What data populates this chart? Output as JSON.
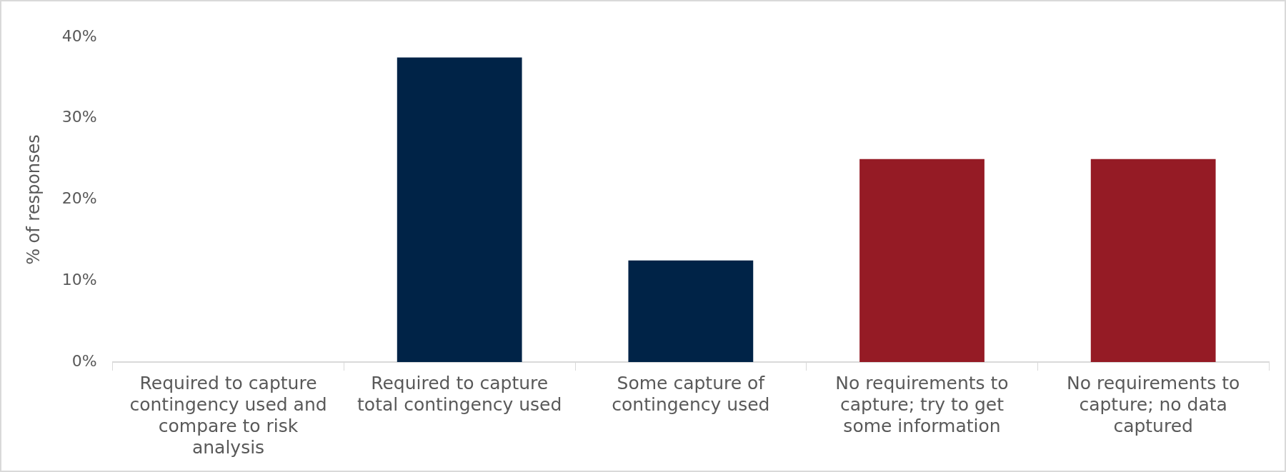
{
  "chart_data": {
    "type": "bar",
    "ylabel": "% of responses",
    "categories": [
      "Required to capture contingency used and compare to risk analysis",
      "Required to capture total contingency used",
      "Some capture of contingency used",
      "No requirements to capture; try to get some information",
      "No requirements to capture; no data captured"
    ],
    "values": [
      0,
      37.5,
      12.5,
      25,
      25
    ],
    "colors": [
      "#002347",
      "#002347",
      "#002347",
      "#951b25",
      "#951b25"
    ],
    "ylim": [
      0,
      40
    ],
    "yticks": [
      {
        "value": 0,
        "label": "0%"
      },
      {
        "value": 10,
        "label": "10%"
      },
      {
        "value": 20,
        "label": "20%"
      },
      {
        "value": 30,
        "label": "30%"
      },
      {
        "value": 40,
        "label": "40%"
      }
    ],
    "grid": false,
    "legend": false
  }
}
